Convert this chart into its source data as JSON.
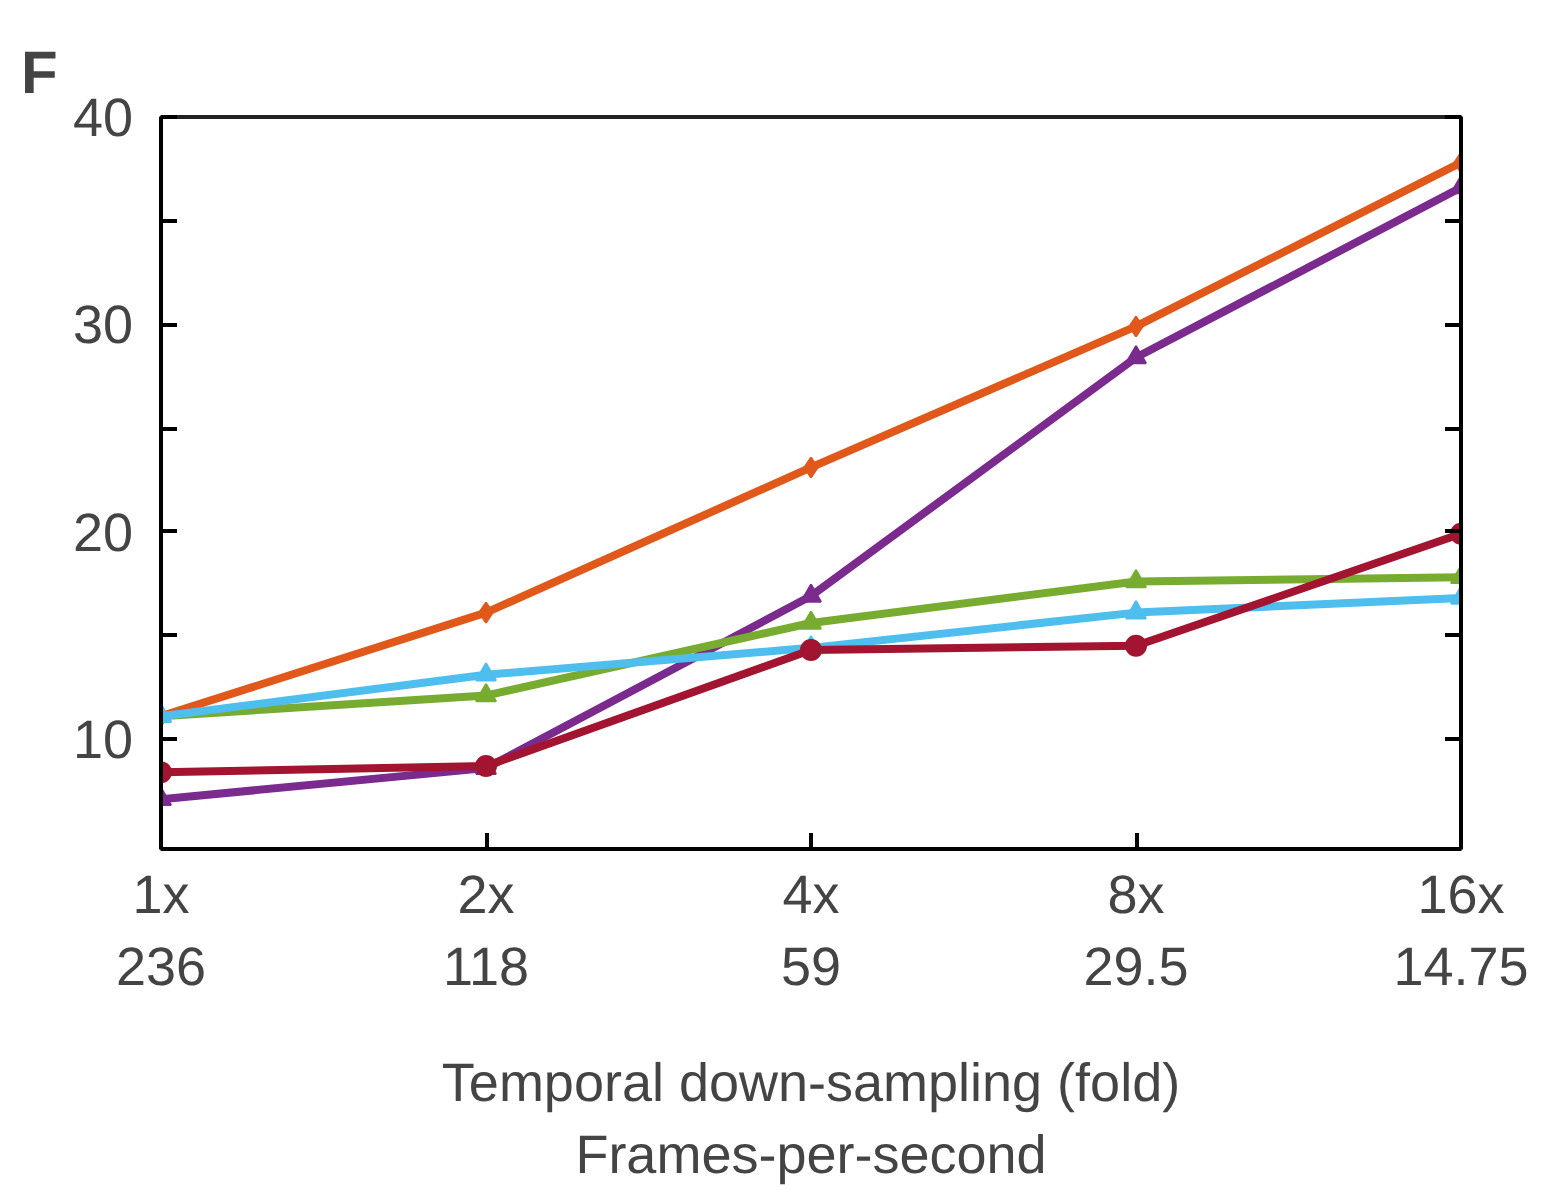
{
  "chart_data": {
    "type": "line",
    "title": "F",
    "xlabel": "Temporal down-sampling (fold)\nFrames-per-second",
    "categories": [
      "1x\n236",
      "2x\n118",
      "4x\n59",
      "8x\n29.5",
      "16x\n14.75"
    ],
    "ylim": [
      4.7,
      40
    ],
    "yticks": [
      10,
      {
        "value": 15,
        "label": null
      },
      20,
      {
        "value": 25,
        "label": null
      },
      30,
      {
        "value": 35,
        "label": null
      },
      40
    ],
    "grid": false,
    "line_style": "solid",
    "series": [
      {
        "color": "#e0591b",
        "marker": "diamond",
        "values": [
          11.1,
          16.1,
          23.1,
          29.9,
          37.8
        ]
      },
      {
        "color": "#7b2a8e",
        "marker": "triangle",
        "values": [
          7.1,
          8.6,
          16.9,
          28.4,
          36.6
        ]
      },
      {
        "color": "#77ac30",
        "marker": "triangle",
        "values": [
          11.1,
          12.1,
          15.6,
          17.6,
          17.8
        ]
      },
      {
        "color": "#4dbeee",
        "marker": "triangle",
        "values": [
          11.1,
          13.1,
          14.4,
          16.1,
          16.8
        ]
      },
      {
        "color": "#a2142f",
        "marker": "circle",
        "values": [
          8.4,
          8.7,
          14.3,
          14.5,
          19.9
        ]
      }
    ]
  }
}
